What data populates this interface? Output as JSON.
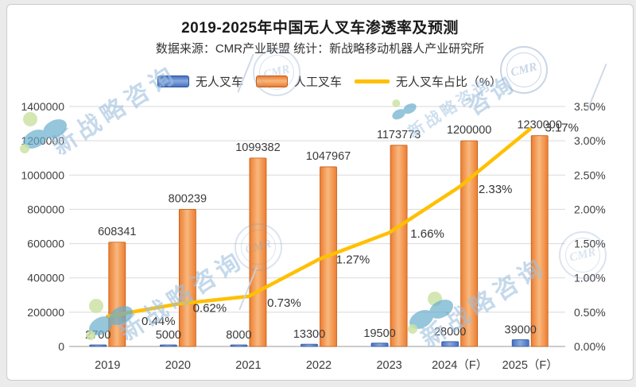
{
  "header": {
    "title": "2019-2025年中国无人叉车渗透率及预测",
    "subtitle": "数据来源：CMR产业联盟 统计：新战略移动机器人产业研究所"
  },
  "legend": {
    "items": [
      {
        "label": "无人叉车",
        "swatch": "bar-blue"
      },
      {
        "label": "人工叉车",
        "swatch": "bar-orange"
      },
      {
        "label": "无人叉车占比（%）",
        "swatch": "line-yellow"
      }
    ]
  },
  "chart_data": {
    "type": "combo",
    "title": "2019-2025年中国无人叉车渗透率及预测",
    "categories": [
      "2019",
      "2020",
      "2021",
      "2022",
      "2023",
      "2024（F）",
      "2025（F）"
    ],
    "series": [
      {
        "name": "无人叉车",
        "chart": "bar",
        "axis": "left",
        "color": "#4472c4",
        "color_light": "#8aa8dd",
        "border": "#2f5597",
        "values": [
          2700,
          5000,
          8000,
          13300,
          19500,
          28000,
          39000
        ],
        "labels": [
          "2700",
          "5000",
          "8000",
          "13300",
          "19500",
          "28000",
          "39000"
        ]
      },
      {
        "name": "人工叉车",
        "chart": "bar",
        "axis": "left",
        "color": "#ed7d31",
        "color_light": "#f8b87e",
        "border": "#c55a11",
        "values": [
          608341,
          800239,
          1099382,
          1047967,
          1173773,
          1200000,
          1230000
        ],
        "labels": [
          "608341",
          "800239",
          "1099382",
          "1047967",
          "1173773",
          "1200000",
          "1230000"
        ]
      },
      {
        "name": "无人叉车占比（%）",
        "chart": "line",
        "axis": "right",
        "color": "#ffc000",
        "values": [
          0.44,
          0.62,
          0.73,
          1.27,
          1.66,
          2.33,
          3.17
        ],
        "labels": [
          "0.44%",
          "0.62%",
          "0.73%",
          "1.27%",
          "1.66%",
          "2.33%",
          "3.17%"
        ]
      }
    ],
    "left_axis": {
      "min": 0,
      "max": 1400000,
      "step": 200000,
      "ticks": [
        "0",
        "200000",
        "400000",
        "600000",
        "800000",
        "1000000",
        "1200000",
        "1400000"
      ]
    },
    "right_axis": {
      "min": 0,
      "max": 3.5,
      "step": 0.5,
      "ticks": [
        "0.00%",
        "0.50%",
        "1.00%",
        "1.50%",
        "2.00%",
        "2.50%",
        "3.00%",
        "3.50%"
      ]
    },
    "grid": true,
    "legend_position": "top"
  },
  "watermark": {
    "stamp_text": "CMR",
    "texts": {
      "t1": "新战略咨询",
      "t2": "咨询",
      "t3": "新战略咨询",
      "t4": "新战略咨询",
      "t5": "新战略咨询"
    }
  }
}
